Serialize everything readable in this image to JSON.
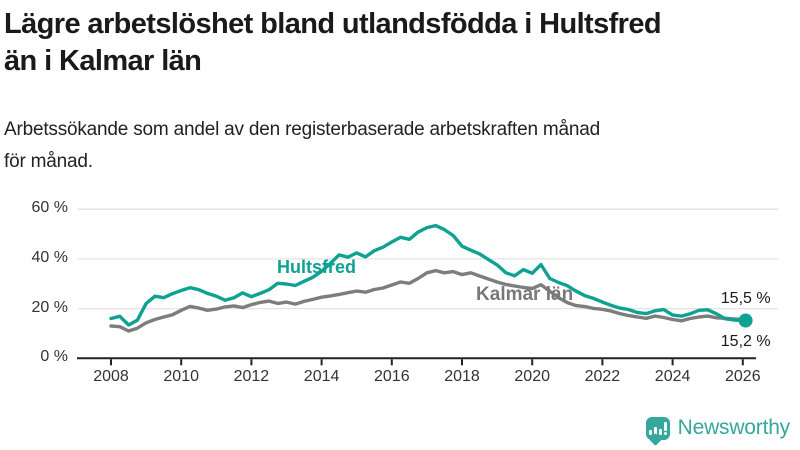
{
  "header": {
    "title_lines": [
      "Lägre arbetslöshet bland utlandsfödda i Hultsfred",
      "än i Kalmar län"
    ],
    "subtitle_lines": [
      "Arbetssökande som andel av den registerbaserade arbetskraften månad",
      "för månad."
    ]
  },
  "colors": {
    "hultsfred": "#0fa192",
    "kalmar": "#7d7d7d",
    "kalmar_label": "#787878",
    "grid": "#e3e3e3",
    "axis": "#222222",
    "tick_text": "#333333",
    "end_label_text": "#1a1a1a",
    "brand_teal": "#35a79c"
  },
  "chart_data": {
    "type": "line",
    "unit": "%",
    "grid": true,
    "ylim": [
      0,
      65
    ],
    "xlim": [
      2008,
      2026.2
    ],
    "yticks": [
      {
        "value": 0,
        "label": "0 %"
      },
      {
        "value": 20,
        "label": "20 %"
      },
      {
        "value": 40,
        "label": "40 %"
      },
      {
        "value": 60,
        "label": "60 %"
      }
    ],
    "xticks": [
      {
        "value": 2008,
        "label": "2008"
      },
      {
        "value": 2010,
        "label": "2010"
      },
      {
        "value": 2012,
        "label": "2012"
      },
      {
        "value": 2014,
        "label": "2014"
      },
      {
        "value": 2016,
        "label": "2016"
      },
      {
        "value": 2018,
        "label": "2018"
      },
      {
        "value": 2020,
        "label": "2020"
      },
      {
        "value": 2022,
        "label": "2022"
      },
      {
        "value": 2024,
        "label": "2024"
      },
      {
        "value": 2026,
        "label": "2026"
      }
    ],
    "series": [
      {
        "name": "Kalmar län",
        "color_key": "kalmar",
        "label_color_key": "kalmar_label",
        "label_anchor": {
          "year": 2018.4,
          "value": 29.8,
          "font_size": 19
        },
        "end_label": "15,5 %",
        "end_label_side": "above",
        "end_dot": false,
        "end_value": 15.5,
        "x": [
          2008.0,
          2008.25,
          2008.5,
          2008.75,
          2009.0,
          2009.25,
          2009.5,
          2009.75,
          2010.0,
          2010.25,
          2010.5,
          2010.75,
          2011.0,
          2011.25,
          2011.5,
          2011.75,
          2012.0,
          2012.25,
          2012.5,
          2012.75,
          2013.0,
          2013.25,
          2013.5,
          2013.75,
          2014.0,
          2014.25,
          2014.5,
          2014.75,
          2015.0,
          2015.25,
          2015.5,
          2015.75,
          2016.0,
          2016.25,
          2016.5,
          2016.75,
          2017.0,
          2017.25,
          2017.5,
          2017.75,
          2018.0,
          2018.25,
          2018.5,
          2018.75,
          2019.0,
          2019.25,
          2019.5,
          2019.75,
          2020.0,
          2020.25,
          2020.5,
          2020.75,
          2021.0,
          2021.25,
          2021.5,
          2021.75,
          2022.0,
          2022.25,
          2022.5,
          2022.75,
          2023.0,
          2023.25,
          2023.5,
          2023.75,
          2024.0,
          2024.25,
          2024.5,
          2024.75,
          2025.0,
          2025.25,
          2025.5,
          2025.75,
          2026.0,
          2026.08
        ],
        "values": [
          13.0,
          12.7,
          11.0,
          12.1,
          14.3,
          15.6,
          16.6,
          17.5,
          19.3,
          20.9,
          20.2,
          19.3,
          19.8,
          20.7,
          21.1,
          20.4,
          21.6,
          22.5,
          23.0,
          22.1,
          22.6,
          21.8,
          22.9,
          23.7,
          24.6,
          25.1,
          25.7,
          26.4,
          27.1,
          26.6,
          27.7,
          28.3,
          29.5,
          30.7,
          30.2,
          32.1,
          34.4,
          35.3,
          34.4,
          34.9,
          33.7,
          34.4,
          33.1,
          31.9,
          30.7,
          29.7,
          29.1,
          28.5,
          28.1,
          29.6,
          27.0,
          24.4,
          22.4,
          21.2,
          20.8,
          20.1,
          19.7,
          19.0,
          18.0,
          17.2,
          16.6,
          16.1,
          17.0,
          16.4,
          15.6,
          15.1,
          16.0,
          16.6,
          17.0,
          16.3,
          16.1,
          15.8,
          15.6,
          15.5
        ]
      },
      {
        "name": "Hultsfred",
        "color_key": "hultsfred",
        "label_color_key": "hultsfred",
        "label_anchor": {
          "year": 2012.73,
          "value": 40.6,
          "font_size": 18
        },
        "end_label": "15,2 %",
        "end_label_side": "below",
        "end_dot": true,
        "end_value": 15.2,
        "x": [
          2008.0,
          2008.25,
          2008.5,
          2008.75,
          2009.0,
          2009.25,
          2009.5,
          2009.75,
          2010.0,
          2010.25,
          2010.5,
          2010.75,
          2011.0,
          2011.25,
          2011.5,
          2011.75,
          2012.0,
          2012.25,
          2012.5,
          2012.75,
          2013.0,
          2013.25,
          2013.5,
          2013.75,
          2014.0,
          2014.25,
          2014.5,
          2014.75,
          2015.0,
          2015.25,
          2015.5,
          2015.75,
          2016.0,
          2016.25,
          2016.5,
          2016.75,
          2017.0,
          2017.25,
          2017.5,
          2017.75,
          2018.0,
          2018.25,
          2018.5,
          2018.75,
          2019.0,
          2019.25,
          2019.5,
          2019.75,
          2020.0,
          2020.25,
          2020.5,
          2020.75,
          2021.0,
          2021.25,
          2021.5,
          2021.75,
          2022.0,
          2022.25,
          2022.5,
          2022.75,
          2023.0,
          2023.25,
          2023.5,
          2023.75,
          2024.0,
          2024.25,
          2024.5,
          2024.75,
          2025.0,
          2025.25,
          2025.5,
          2025.75,
          2026.0,
          2026.08
        ],
        "values": [
          16.0,
          16.9,
          13.4,
          15.3,
          22.0,
          25.0,
          24.4,
          26.0,
          27.3,
          28.4,
          27.6,
          26.1,
          25.0,
          23.4,
          24.4,
          26.3,
          24.8,
          26.1,
          27.6,
          30.2,
          29.9,
          29.3,
          31.0,
          32.6,
          35.0,
          38.2,
          41.6,
          40.7,
          42.4,
          40.8,
          43.3,
          44.7,
          46.8,
          48.7,
          47.9,
          50.8,
          52.6,
          53.4,
          51.8,
          49.4,
          45.1,
          43.5,
          42.0,
          39.8,
          37.6,
          34.4,
          33.2,
          35.7,
          34.2,
          37.7,
          32.1,
          30.5,
          29.2,
          27.0,
          25.2,
          24.1,
          22.6,
          21.3,
          20.2,
          19.6,
          18.4,
          18.0,
          19.1,
          19.6,
          17.4,
          17.0,
          17.9,
          19.3,
          19.5,
          17.9,
          15.9,
          15.4,
          15.2,
          15.2
        ]
      }
    ]
  },
  "footer": {
    "brand": "Newsworthy",
    "logo_icon": "bar-chart-speech-bubble-icon"
  }
}
